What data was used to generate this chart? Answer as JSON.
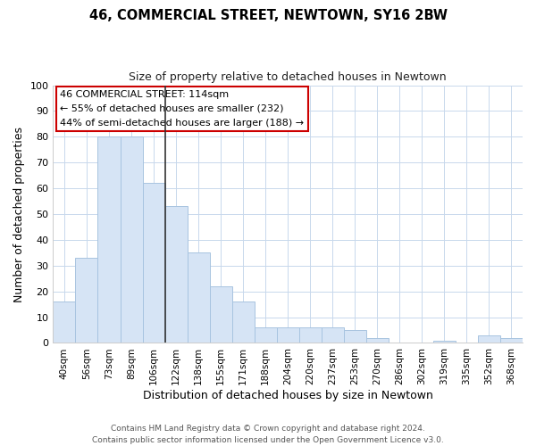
{
  "title": "46, COMMERCIAL STREET, NEWTOWN, SY16 2BW",
  "subtitle": "Size of property relative to detached houses in Newtown",
  "xlabel": "Distribution of detached houses by size in Newtown",
  "ylabel": "Number of detached properties",
  "bar_color": "#d6e4f5",
  "bar_edge_color": "#a8c4e0",
  "categories": [
    "40sqm",
    "56sqm",
    "73sqm",
    "89sqm",
    "106sqm",
    "122sqm",
    "138sqm",
    "155sqm",
    "171sqm",
    "188sqm",
    "204sqm",
    "220sqm",
    "237sqm",
    "253sqm",
    "270sqm",
    "286sqm",
    "302sqm",
    "319sqm",
    "335sqm",
    "352sqm",
    "368sqm"
  ],
  "values": [
    16,
    33,
    80,
    80,
    62,
    53,
    35,
    22,
    16,
    6,
    6,
    6,
    6,
    5,
    2,
    0,
    0,
    1,
    0,
    3,
    2
  ],
  "ylim": [
    0,
    100
  ],
  "yticks": [
    0,
    10,
    20,
    30,
    40,
    50,
    60,
    70,
    80,
    90,
    100
  ],
  "property_line_x": 4.5,
  "annotation_text_line1": "46 COMMERCIAL STREET: 114sqm",
  "annotation_text_line2": "← 55% of detached houses are smaller (232)",
  "annotation_text_line3": "44% of semi-detached houses are larger (188) →",
  "annotation_box_color": "#ffffff",
  "annotation_box_edge_color": "#cc0000",
  "property_line_color": "#333333",
  "footer_line1": "Contains HM Land Registry data © Crown copyright and database right 2024.",
  "footer_line2": "Contains public sector information licensed under the Open Government Licence v3.0.",
  "background_color": "#ffffff",
  "grid_color": "#c8d8ec"
}
